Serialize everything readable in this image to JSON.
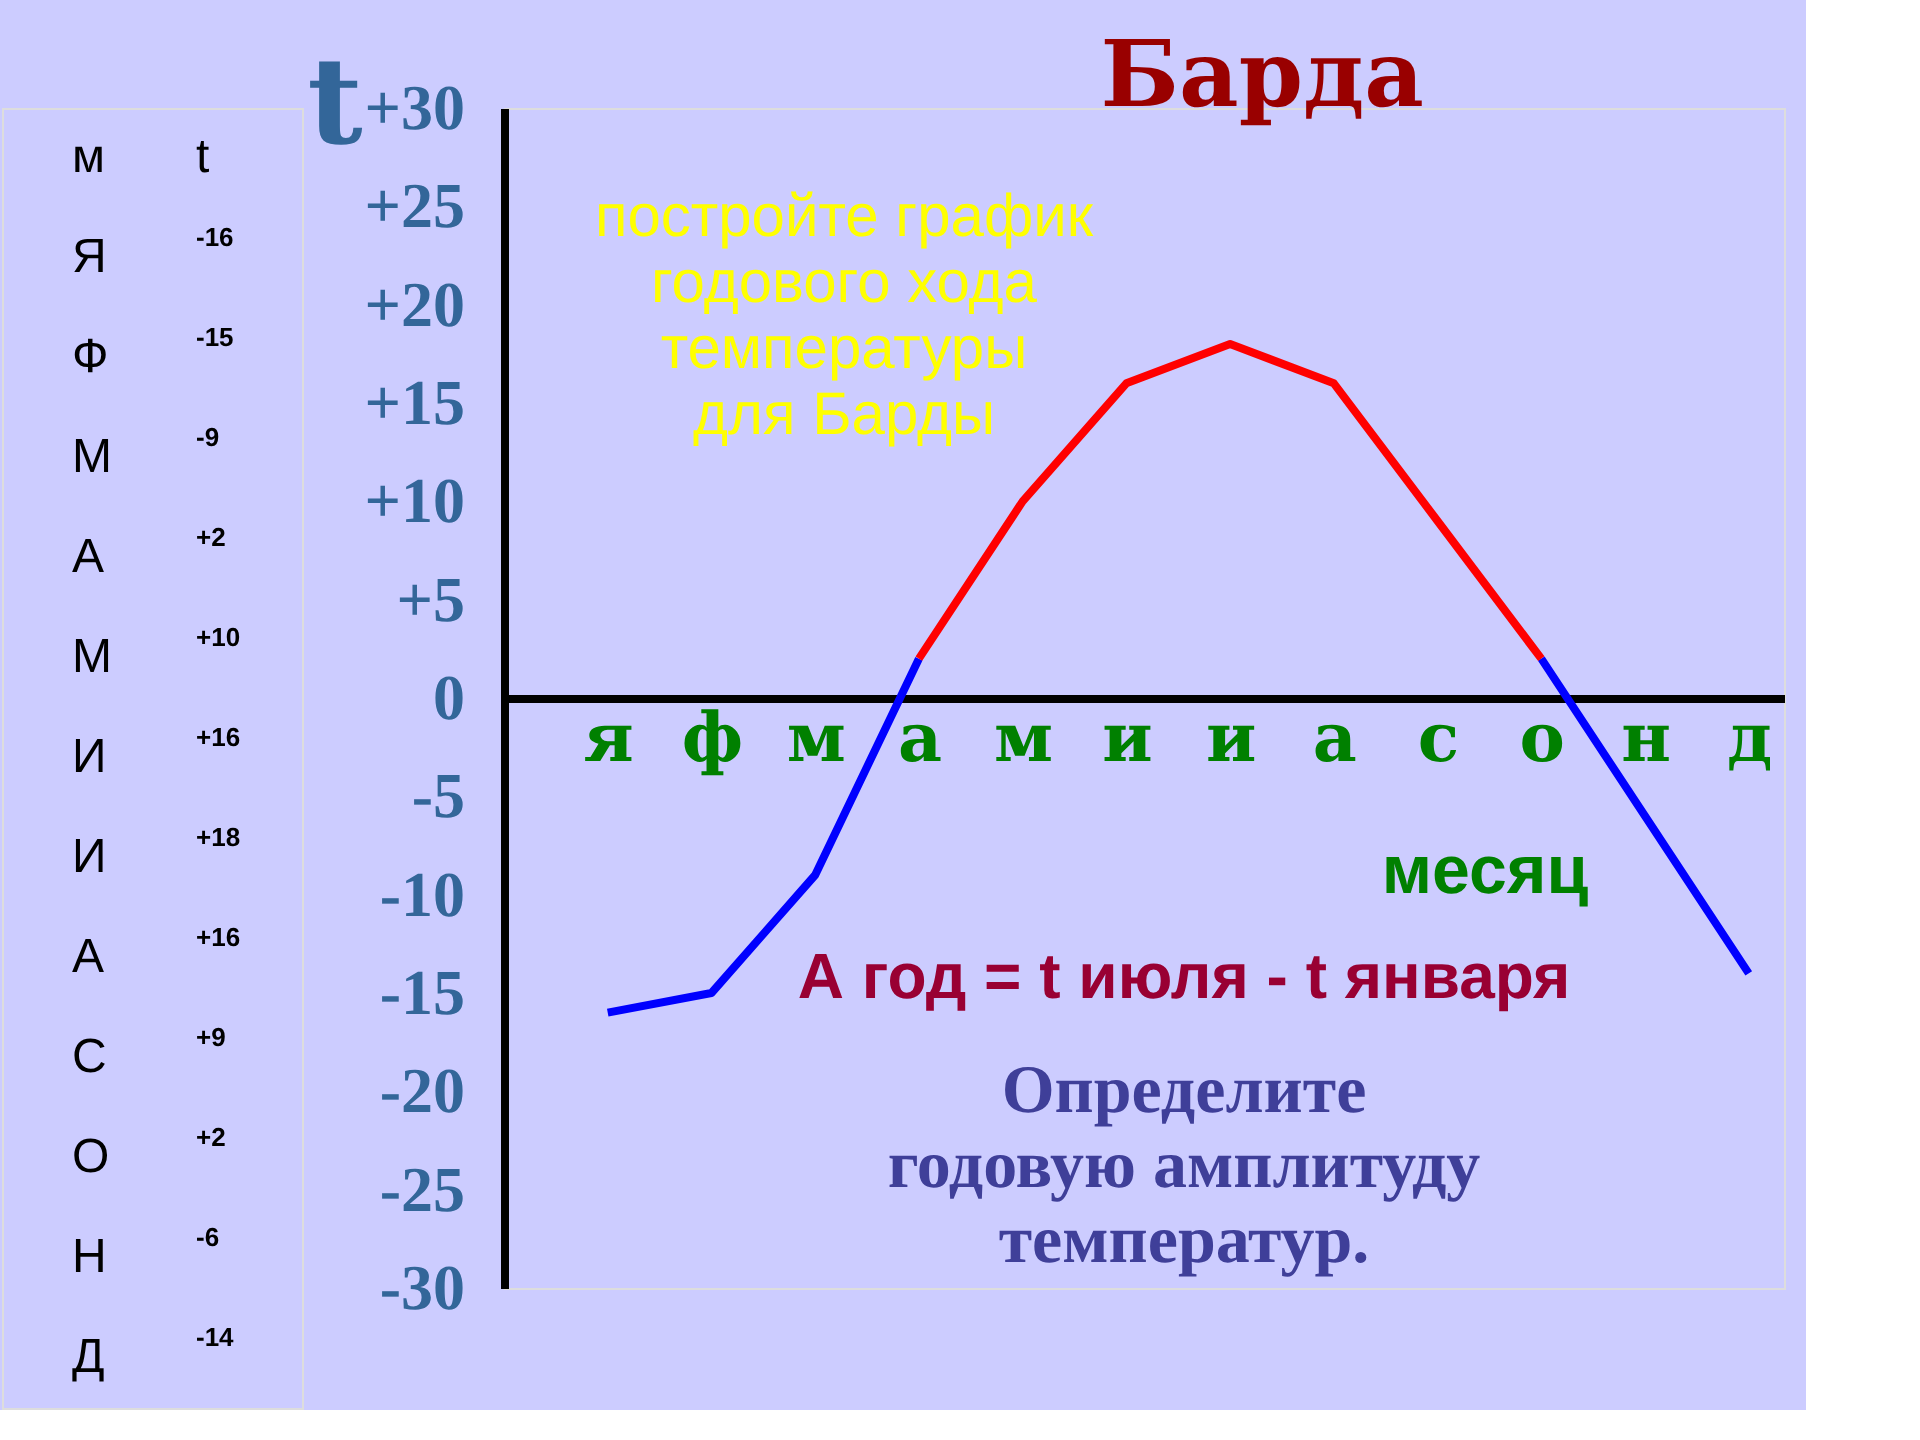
{
  "chart_data": [
    {
      "type": "other",
      "annotations": [
        "м",
        "t"
      ],
      "categories": [
        "Я",
        "Ф",
        "М",
        "А",
        "М",
        "И",
        "И",
        "А",
        "С",
        "О",
        "Н",
        "Д"
      ],
      "value_labels": [
        "-16",
        "-15",
        "-9",
        "+2",
        "+10",
        "+16",
        "+18",
        "+16",
        "+9",
        "+2",
        "-6",
        "-14"
      ]
    },
    {
      "type": "line",
      "title": "Барда",
      "xlabel": "месяц",
      "ylabel": "t",
      "categories": [
        "я",
        "ф",
        "м",
        "а",
        "м",
        "и",
        "и",
        "а",
        "с",
        "о",
        "н",
        "д"
      ],
      "series": [
        {
          "color": "#0000ff",
          "values": [
            -16,
            -15,
            -9,
            2,
            null,
            null,
            null,
            null,
            null,
            2,
            -6,
            -14
          ]
        },
        {
          "color": "#ff0000",
          "values": [
            null,
            null,
            null,
            2,
            10,
            16,
            18,
            16,
            9,
            2,
            null,
            null
          ]
        }
      ],
      "ylim": [
        -30,
        30
      ],
      "yticks": [
        {
          "value": 30,
          "label": "+30"
        },
        {
          "value": 25,
          "label": "+25"
        },
        {
          "value": 20,
          "label": "+20"
        },
        {
          "value": 15,
          "label": "+15"
        },
        {
          "value": 10,
          "label": "+10"
        },
        {
          "value": 5,
          "label": "+5"
        },
        0,
        -5,
        -10,
        -15,
        -20,
        -25,
        -30
      ],
      "grid": false,
      "legend": false,
      "marker": "none",
      "line_style": "solid",
      "annotations": [
        "постройте график\nгодового хода\nтемпературы\nдля Барды",
        "А год = t июля - t января",
        "Определите\nгодовую амплитуду\nтемператур."
      ]
    }
  ]
}
